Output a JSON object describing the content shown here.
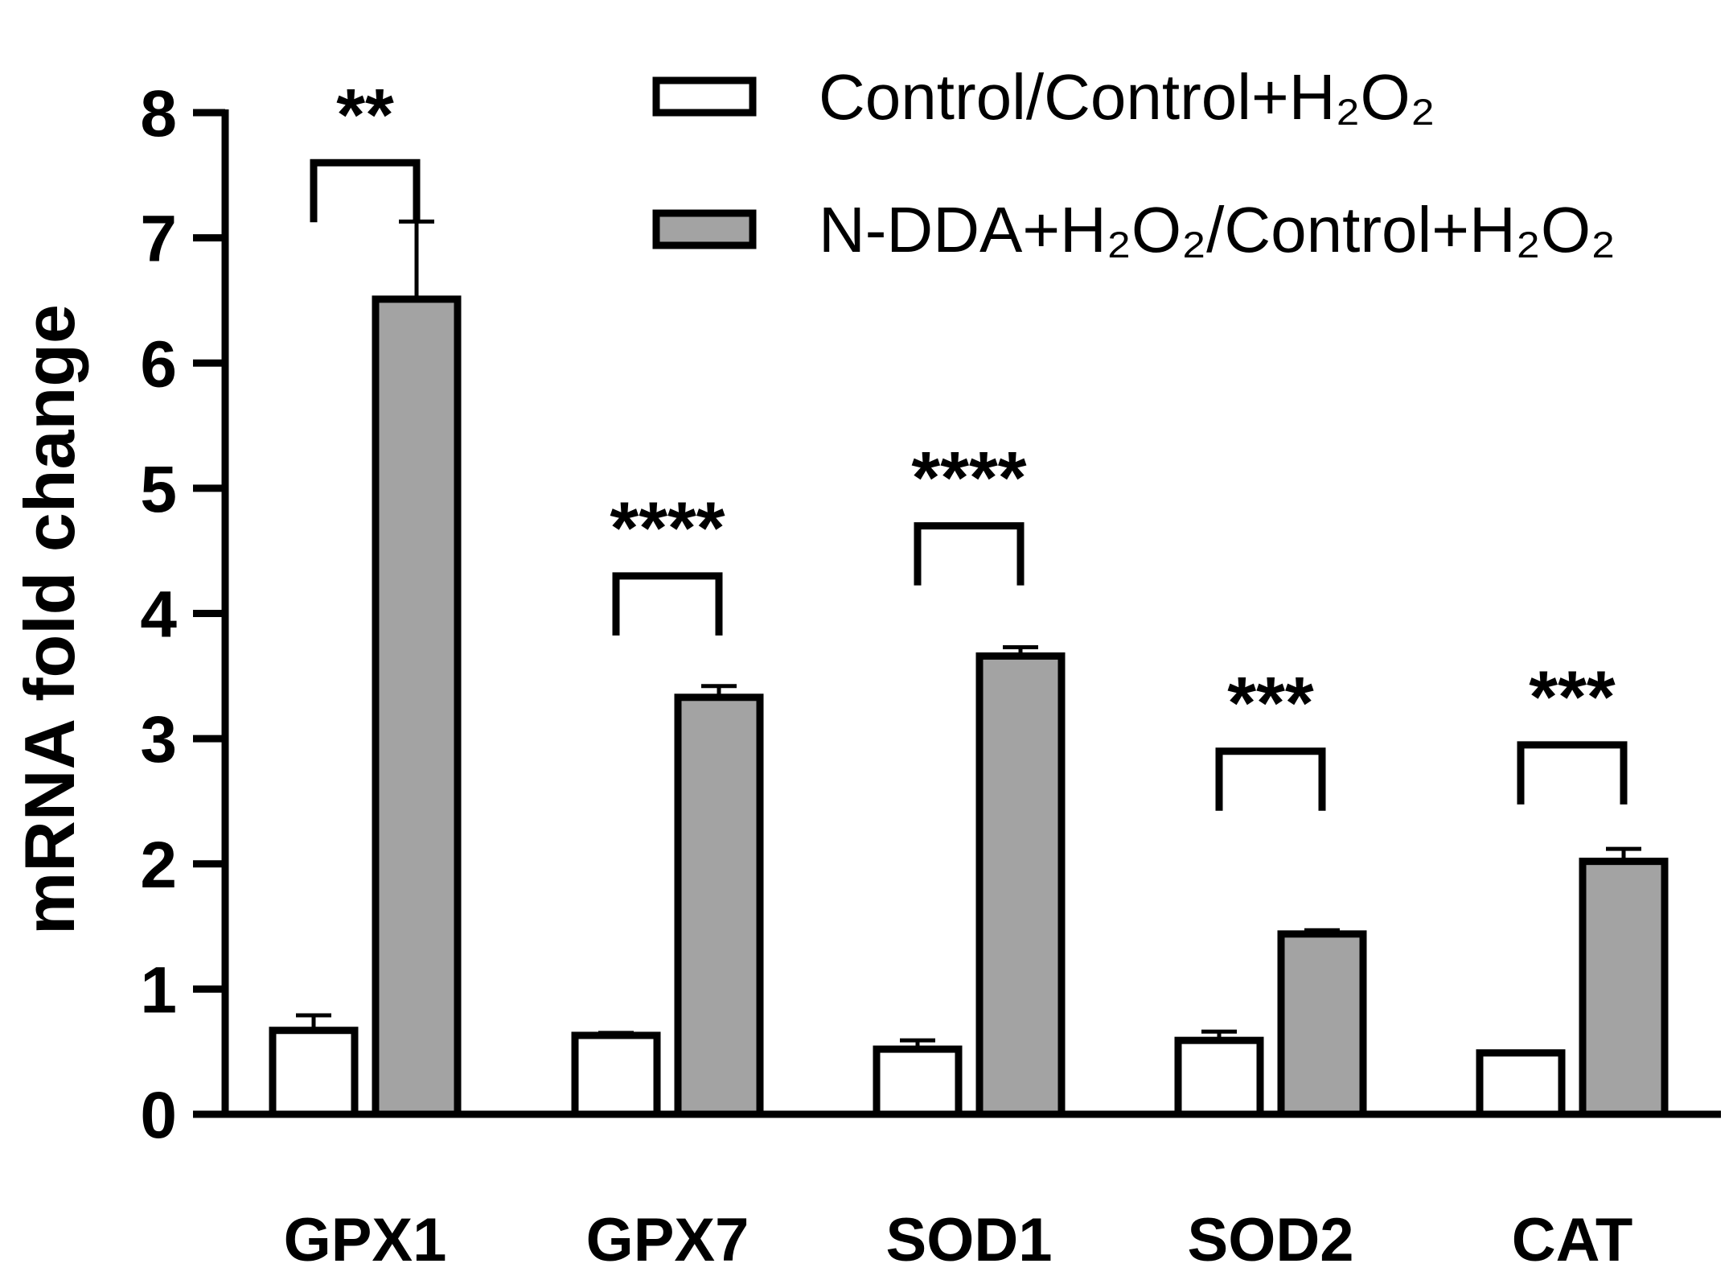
{
  "chart_data": {
    "type": "bar",
    "ylabel": "mRNA fold change",
    "xlabel": "",
    "ylim": [
      0,
      8
    ],
    "yticks": [
      0,
      1,
      2,
      3,
      4,
      5,
      6,
      7,
      8
    ],
    "categories": [
      "GPX1",
      "GPX7",
      "SOD1",
      "SOD2",
      "CAT"
    ],
    "series": [
      {
        "name": "Control/Control+H₂O₂",
        "color": "#ffffff",
        "values": [
          0.67,
          0.63,
          0.52,
          0.59,
          0.49
        ],
        "errors": [
          0.12,
          0.02,
          0.07,
          0.07,
          0.01
        ]
      },
      {
        "name": "N-DDA+H₂O₂/Control+H₂O₂",
        "color": "#a3a3a3",
        "values": [
          6.51,
          3.33,
          3.66,
          1.44,
          2.02
        ],
        "errors": [
          0.62,
          0.09,
          0.07,
          0.03,
          0.1
        ]
      }
    ],
    "significance": [
      {
        "category": "GPX1",
        "label": "**",
        "bracket_y": 7.6
      },
      {
        "category": "GPX7",
        "label": "****",
        "bracket_y": 4.3
      },
      {
        "category": "SOD1",
        "label": "****",
        "bracket_y": 4.7
      },
      {
        "category": "SOD2",
        "label": "***",
        "bracket_y": 2.9
      },
      {
        "category": "CAT",
        "label": "***",
        "bracket_y": 2.95
      }
    ],
    "legend_position": "top-right",
    "grid": false
  }
}
